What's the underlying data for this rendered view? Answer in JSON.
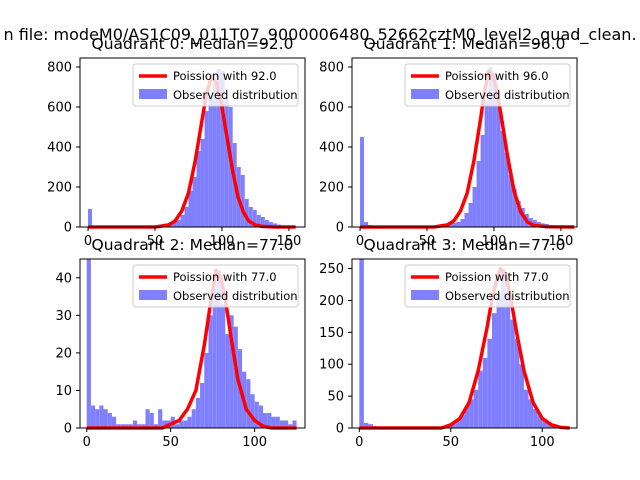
{
  "chart_data": {
    "suptitle": "n file: modeM0/AS1C09_011T07_9000006480_52662cztM0_level2_quad_clean.",
    "type": "bar",
    "colors": {
      "hist": "#8080ff",
      "line": "#ff0000"
    },
    "panels": [
      {
        "title": "Quadrant 0: Median=92.0",
        "median": 92.0,
        "xlim": [
          -6,
          162
        ],
        "ylim": [
          0,
          845
        ],
        "xticks": [
          0,
          50,
          100,
          150
        ],
        "yticks": [
          0,
          200,
          400,
          600,
          800
        ],
        "legend": {
          "line_label": "Poission with 92.0",
          "hist_label": "Observed distribution",
          "position": "upper right"
        },
        "hist": {
          "bin_width": 3.0,
          "bins": [
            [
              0,
              90
            ],
            [
              3,
              5
            ],
            [
              6,
              4
            ],
            [
              9,
              2
            ],
            [
              12,
              2
            ],
            [
              15,
              2
            ],
            [
              18,
              2
            ],
            [
              21,
              2
            ],
            [
              24,
              2
            ],
            [
              27,
              2
            ],
            [
              30,
              2
            ],
            [
              33,
              2
            ],
            [
              36,
              2
            ],
            [
              39,
              2
            ],
            [
              42,
              3
            ],
            [
              45,
              4
            ],
            [
              48,
              6
            ],
            [
              51,
              8
            ],
            [
              54,
              12
            ],
            [
              57,
              18
            ],
            [
              60,
              20
            ],
            [
              63,
              25
            ],
            [
              66,
              35
            ],
            [
              69,
              60
            ],
            [
              72,
              100
            ],
            [
              75,
              180
            ],
            [
              78,
              250
            ],
            [
              81,
              380
            ],
            [
              84,
              440
            ],
            [
              87,
              580
            ],
            [
              90,
              650
            ],
            [
              93,
              720
            ],
            [
              96,
              790
            ],
            [
              99,
              780
            ],
            [
              102,
              640
            ],
            [
              105,
              600
            ],
            [
              108,
              420
            ],
            [
              111,
              300
            ],
            [
              114,
              260
            ],
            [
              117,
              140
            ],
            [
              120,
              100
            ],
            [
              123,
              85
            ],
            [
              126,
              60
            ],
            [
              129,
              50
            ],
            [
              132,
              35
            ],
            [
              135,
              25
            ],
            [
              138,
              18
            ],
            [
              141,
              12
            ],
            [
              144,
              8
            ],
            [
              147,
              5
            ],
            [
              150,
              4
            ],
            [
              153,
              3
            ]
          ]
        },
        "poisson": {
          "x": [
            0,
            50,
            60,
            65,
            70,
            75,
            80,
            84,
            88,
            92,
            96,
            100,
            104,
            108,
            112,
            116,
            120,
            125,
            130,
            140,
            155
          ],
          "y": [
            0,
            0,
            10,
            30,
            80,
            170,
            330,
            490,
            650,
            750,
            720,
            600,
            440,
            280,
            150,
            75,
            30,
            10,
            3,
            0,
            0
          ]
        }
      },
      {
        "title": "Quadrant 1: Median=96.0",
        "median": 96.0,
        "xlim": [
          -6,
          162
        ],
        "ylim": [
          0,
          845
        ],
        "xticks": [
          0,
          50,
          100,
          150
        ],
        "yticks": [
          0,
          200,
          400,
          600,
          800
        ],
        "legend": {
          "line_label": "Poission with 96.0",
          "hist_label": "Observed distribution",
          "position": "upper right"
        },
        "hist": {
          "bin_width": 3.0,
          "bins": [
            [
              0,
              450
            ],
            [
              3,
              25
            ],
            [
              6,
              10
            ],
            [
              9,
              3
            ],
            [
              12,
              2
            ],
            [
              15,
              2
            ],
            [
              18,
              2
            ],
            [
              21,
              2
            ],
            [
              24,
              2
            ],
            [
              27,
              2
            ],
            [
              30,
              2
            ],
            [
              33,
              2
            ],
            [
              36,
              2
            ],
            [
              39,
              2
            ],
            [
              42,
              2
            ],
            [
              45,
              2
            ],
            [
              48,
              3
            ],
            [
              51,
              4
            ],
            [
              54,
              6
            ],
            [
              57,
              8
            ],
            [
              60,
              10
            ],
            [
              63,
              12
            ],
            [
              66,
              15
            ],
            [
              69,
              20
            ],
            [
              72,
              25
            ],
            [
              75,
              40
            ],
            [
              78,
              70
            ],
            [
              81,
              120
            ],
            [
              84,
              200
            ],
            [
              87,
              330
            ],
            [
              90,
              460
            ],
            [
              93,
              630
            ],
            [
              96,
              800
            ],
            [
              99,
              770
            ],
            [
              102,
              670
            ],
            [
              105,
              480
            ],
            [
              108,
              370
            ],
            [
              111,
              260
            ],
            [
              114,
              190
            ],
            [
              117,
              130
            ],
            [
              120,
              95
            ],
            [
              123,
              65
            ],
            [
              126,
              45
            ],
            [
              129,
              35
            ],
            [
              132,
              25
            ],
            [
              135,
              18
            ],
            [
              138,
              15
            ],
            [
              141,
              10
            ],
            [
              144,
              8
            ],
            [
              147,
              6
            ],
            [
              150,
              4
            ],
            [
              153,
              3
            ]
          ]
        },
        "poisson": {
          "x": [
            0,
            55,
            65,
            70,
            75,
            80,
            85,
            90,
            93,
            96,
            99,
            102,
            106,
            110,
            115,
            120,
            125,
            130,
            140,
            160
          ],
          "y": [
            0,
            0,
            10,
            30,
            80,
            170,
            330,
            540,
            680,
            780,
            760,
            690,
            530,
            360,
            180,
            75,
            25,
            8,
            1,
            0
          ]
        }
      },
      {
        "title": "Quadrant 2: Median=77.0",
        "median": 77.0,
        "xlim": [
          -4,
          130
        ],
        "ylim": [
          0,
          45
        ],
        "xticks": [
          0,
          50,
          100
        ],
        "yticks": [
          0,
          10,
          20,
          30,
          40
        ],
        "legend": {
          "line_label": "Poission with 77.0",
          "hist_label": "Observed distribution",
          "position": "upper right"
        },
        "hist": {
          "bin_width": 2.5,
          "bins": [
            [
              0,
              45
            ],
            [
              2.5,
              6
            ],
            [
              5,
              5
            ],
            [
              7.5,
              6
            ],
            [
              10,
              5
            ],
            [
              12.5,
              4
            ],
            [
              15,
              3
            ],
            [
              17.5,
              1
            ],
            [
              20,
              1
            ],
            [
              22.5,
              1
            ],
            [
              25,
              1
            ],
            [
              27.5,
              2
            ],
            [
              30,
              1
            ],
            [
              32.5,
              1
            ],
            [
              35,
              5
            ],
            [
              37.5,
              4
            ],
            [
              40,
              1
            ],
            [
              42.5,
              5
            ],
            [
              45,
              2
            ],
            [
              47.5,
              2
            ],
            [
              50,
              3
            ],
            [
              52.5,
              1
            ],
            [
              55,
              2
            ],
            [
              57.5,
              2
            ],
            [
              60,
              3
            ],
            [
              62.5,
              5
            ],
            [
              65,
              8
            ],
            [
              67.5,
              12
            ],
            [
              70,
              20
            ],
            [
              72.5,
              30
            ],
            [
              75,
              37
            ],
            [
              77.5,
              42
            ],
            [
              80,
              33
            ],
            [
              82.5,
              25
            ],
            [
              85,
              30
            ],
            [
              87.5,
              27
            ],
            [
              90,
              21
            ],
            [
              92.5,
              15
            ],
            [
              95,
              13
            ],
            [
              97.5,
              9
            ],
            [
              100,
              7
            ],
            [
              102.5,
              6
            ],
            [
              105,
              4
            ],
            [
              107.5,
              4
            ],
            [
              110,
              3
            ],
            [
              112.5,
              3
            ],
            [
              115,
              2
            ],
            [
              117.5,
              2
            ],
            [
              120,
              1
            ],
            [
              122.5,
              2
            ]
          ]
        },
        "poisson": {
          "x": [
            0,
            45,
            50,
            55,
            60,
            65,
            70,
            73,
            77,
            80,
            83,
            86,
            90,
            95,
            100,
            105,
            110,
            115,
            125
          ],
          "y": [
            0,
            0,
            1,
            2,
            5,
            10,
            22,
            31,
            42,
            40,
            33,
            24,
            13,
            5,
            2,
            0.5,
            0,
            0,
            0
          ]
        }
      },
      {
        "title": "Quadrant 3: Median=77.0",
        "median": 77.0,
        "xlim": [
          -4,
          119
        ],
        "ylim": [
          0,
          265
        ],
        "xticks": [
          0,
          50,
          100
        ],
        "yticks": [
          0,
          50,
          100,
          150,
          200,
          250
        ],
        "legend": {
          "line_label": "Poission with 77.0",
          "hist_label": "Observed distribution",
          "position": "upper right"
        },
        "hist": {
          "bin_width": 2.5,
          "bins": [
            [
              0,
              265
            ],
            [
              2.5,
              8
            ],
            [
              5,
              6
            ],
            [
              7.5,
              3
            ],
            [
              10,
              1
            ],
            [
              12.5,
              1
            ],
            [
              15,
              1
            ],
            [
              17.5,
              1
            ],
            [
              20,
              1
            ],
            [
              22.5,
              1
            ],
            [
              25,
              1
            ],
            [
              27.5,
              1
            ],
            [
              30,
              1
            ],
            [
              32.5,
              1
            ],
            [
              35,
              1
            ],
            [
              37.5,
              1
            ],
            [
              40,
              2
            ],
            [
              42.5,
              2
            ],
            [
              45,
              3
            ],
            [
              47.5,
              5
            ],
            [
              50,
              8
            ],
            [
              52.5,
              12
            ],
            [
              55,
              20
            ],
            [
              57.5,
              35
            ],
            [
              60,
              45
            ],
            [
              62.5,
              60
            ],
            [
              65,
              90
            ],
            [
              67.5,
              110
            ],
            [
              70,
              140
            ],
            [
              72.5,
              180
            ],
            [
              75,
              210
            ],
            [
              77.5,
              250
            ],
            [
              80,
              210
            ],
            [
              82.5,
              170
            ],
            [
              85,
              140
            ],
            [
              87.5,
              100
            ],
            [
              90,
              60
            ],
            [
              92.5,
              45
            ],
            [
              95,
              30
            ],
            [
              97.5,
              20
            ],
            [
              100,
              15
            ],
            [
              102.5,
              10
            ],
            [
              105,
              5
            ],
            [
              107.5,
              3
            ],
            [
              110,
              2
            ]
          ]
        },
        "poisson": {
          "x": [
            0,
            45,
            50,
            55,
            60,
            65,
            70,
            73,
            77,
            80,
            83,
            86,
            90,
            95,
            100,
            105,
            110,
            115
          ],
          "y": [
            0,
            0,
            5,
            15,
            40,
            90,
            160,
            210,
            250,
            240,
            200,
            150,
            90,
            40,
            15,
            5,
            1,
            0
          ]
        }
      }
    ]
  }
}
